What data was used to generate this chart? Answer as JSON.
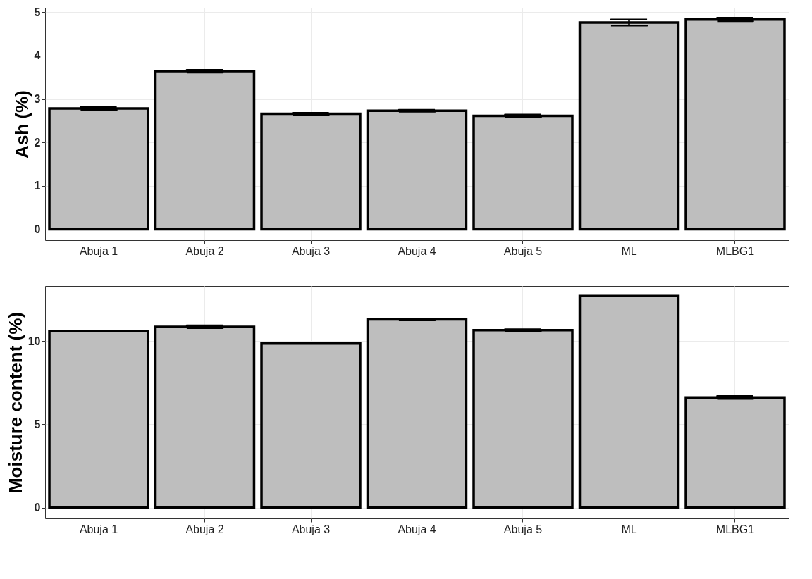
{
  "chart_data": [
    {
      "type": "bar",
      "ylabel": "Ash (%)",
      "categories": [
        "Abuja 1",
        "Abuja 2",
        "Abuja 3",
        "Abuja 4",
        "Abuja 5",
        "ML",
        "MLBG1"
      ],
      "values": [
        2.78,
        3.64,
        2.66,
        2.73,
        2.61,
        4.76,
        4.83
      ],
      "errors": [
        0.03,
        0.03,
        0.02,
        0.02,
        0.03,
        0.07,
        0.04
      ],
      "color": "#bebebe",
      "ylim": [
        -0.25,
        5.1
      ],
      "yticks": [
        0,
        1,
        2,
        3,
        4,
        5
      ],
      "grid": true
    },
    {
      "type": "bar",
      "ylabel": "Moisture content (%)",
      "categories": [
        "Abuja 1",
        "Abuja 2",
        "Abuja 3",
        "Abuja 4",
        "Abuja 5",
        "ML",
        "MLBG1"
      ],
      "values": [
        10.6,
        10.85,
        9.84,
        11.29,
        10.65,
        12.7,
        6.61
      ],
      "errors": [
        null,
        0.08,
        null,
        0.05,
        0.05,
        null,
        0.08
      ],
      "color": "#bebebe",
      "ylim": [
        -0.65,
        13.3
      ],
      "yticks": [
        0,
        5,
        10
      ],
      "grid": true
    }
  ]
}
